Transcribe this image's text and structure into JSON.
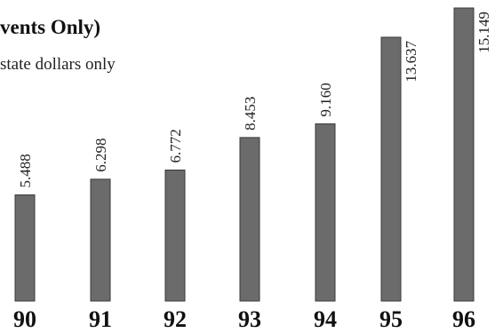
{
  "header": {
    "title": "vents Only)",
    "subtitle": "state dollars only"
  },
  "chart_data": {
    "type": "bar",
    "categories": [
      "90",
      "91",
      "92",
      "93",
      "94",
      "95",
      "96"
    ],
    "values": [
      5.488,
      6.298,
      6.772,
      8.453,
      9.16,
      13.637,
      15.149
    ],
    "value_labels": [
      "5.488",
      "6.298",
      "6.772",
      "8.453",
      "9.160",
      "13.637",
      "15.149"
    ],
    "title": "vents Only)",
    "subtitle": "state dollars only",
    "ylim": [
      0,
      15.149
    ],
    "grid": false,
    "bar_color": "#6b6b6b"
  }
}
